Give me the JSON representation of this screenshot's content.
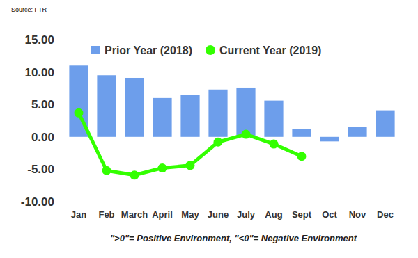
{
  "chart_data": {
    "type": "bar",
    "annotations": [
      "Source: FTR",
      "\">0\"= Positive Environment, \"<0\"= Negative Environment"
    ],
    "categories": [
      "Jan",
      "Feb",
      "March",
      "April",
      "May",
      "June",
      "July",
      "Aug",
      "Sept",
      "Oct",
      "Nov",
      "Dec"
    ],
    "series": [
      {
        "name": "Prior Year (2018)",
        "type": "bar",
        "color": "#6d9eeb",
        "values": [
          11.0,
          9.5,
          9.1,
          6.0,
          6.5,
          7.3,
          7.6,
          5.6,
          1.2,
          -0.7,
          1.5,
          4.1
        ]
      },
      {
        "name": "Current Year (2019)",
        "type": "line",
        "color": "#33ff00",
        "marker": "circle",
        "line_style": "solid",
        "values": [
          3.7,
          -5.2,
          -5.9,
          -4.8,
          -4.4,
          -0.8,
          0.4,
          -1.1,
          -3.0,
          null,
          null,
          null
        ]
      }
    ],
    "ylim": [
      -10,
      15
    ],
    "yticks": [
      {
        "value": -10,
        "label": "-10.00"
      },
      {
        "value": -5,
        "label": "-5.00"
      },
      {
        "value": 0,
        "label": "0.00"
      },
      {
        "value": 5,
        "label": "5.00"
      },
      {
        "value": 10,
        "label": "10.00"
      },
      {
        "value": 15,
        "label": "15.00"
      }
    ],
    "grid": false,
    "legend": "top"
  }
}
